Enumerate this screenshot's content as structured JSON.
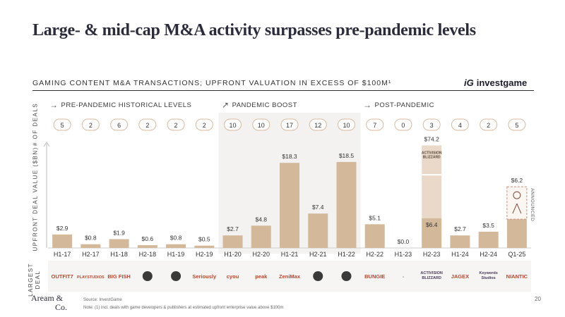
{
  "title": "Large- & mid-cap M&A activity surpasses pre-pandemic levels",
  "subtitle": "GAMING CONTENT M&A TRANSACTIONS; UPFRONT VALUATION IN EXCESS OF $100M¹",
  "brand": {
    "mark": "iG",
    "name": "investgame"
  },
  "labels": {
    "deals": "# OF DEALS",
    "value": "UPFRONT DEAL VALUE ($BN)",
    "largest": "LARGEST DEAL",
    "announced": "ANNOUNCED"
  },
  "periods": [
    {
      "arrow": "→",
      "label": "PRE-PANDEMIC HISTORICAL LEVELS"
    },
    {
      "arrow": "↗",
      "label": "PANDEMIC BOOST"
    },
    {
      "arrow": "→",
      "label": "POST-PANDEMIC"
    }
  ],
  "footer": {
    "logo_line1": "Aream &",
    "logo_line2": "Co.",
    "source": "Source: InvestGame",
    "note": "Note: (1) incl. deals with game developers & publishers at estimated upfront enterprise value above $100m",
    "page": "20"
  },
  "colors": {
    "bar": "#d4b89a",
    "bar_light": "#ead9c8",
    "pandemic_bg": "#f3f2f0",
    "badge_border": "#d8bba0"
  },
  "chart_data": {
    "type": "bar",
    "categories": [
      "H1-17",
      "H2-17",
      "H1-18",
      "H2-18",
      "H1-19",
      "H2-19",
      "H1-20",
      "H2-20",
      "H1-21",
      "H2-21",
      "H1-22",
      "H2-22",
      "H1-23",
      "H2-23",
      "H1-24",
      "H2-24",
      "Q1-25"
    ],
    "values": [
      2.9,
      0.8,
      1.9,
      0.6,
      0.8,
      0.5,
      2.7,
      4.8,
      18.3,
      7.4,
      18.5,
      5.1,
      0.0,
      74.2,
      2.7,
      3.5,
      6.2
    ],
    "value_labels": [
      "$2.9",
      "$0.8",
      "$1.9",
      "$0.6",
      "$0.8",
      "$0.5",
      "$2.7",
      "$4.8",
      "$18.3",
      "$7.4",
      "$18.5",
      "$5.1",
      "$0.0",
      "$74.2",
      "$2.7",
      "$3.5",
      "$6.2"
    ],
    "deal_counts": [
      "5",
      "2",
      "6",
      "2",
      "2",
      "2",
      "10",
      "10",
      "17",
      "12",
      "10",
      "7",
      "0",
      "3",
      "4",
      "2",
      "5"
    ],
    "stacked_segments": {
      "H2-23": {
        "lower": 6.4,
        "lower_label": "$6.4",
        "upper_logo": "ACTIVISION BLIZZARD"
      }
    },
    "annotated_segment": {
      "Q1-25": {
        "note": "ANNOUNCED"
      }
    },
    "largest_deal": [
      "OUTFIT7",
      "PLAYSTUDIOS",
      "BIG FISH",
      "",
      "",
      "Seriously",
      "cyou",
      "peak",
      "ZeniMax",
      "",
      "",
      "BUNGIE",
      "-",
      "ACTIVISION BLIZZARD",
      "JAGEX",
      "Keywords Studios",
      "NIANTIC"
    ],
    "ylabel": "UPFRONT DEAL VALUE ($BN)",
    "axis": "broken",
    "grid": false
  }
}
